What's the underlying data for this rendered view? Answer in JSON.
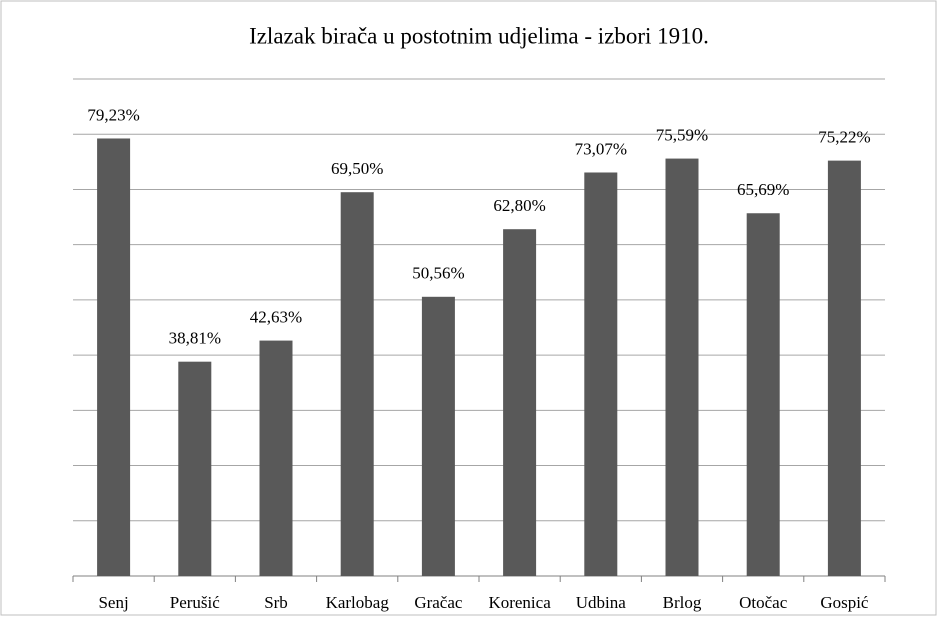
{
  "chart_data": {
    "type": "bar",
    "title": "Izlazak birača u postotnim udjelima - izbori 1910.",
    "categories": [
      "Senj",
      "Perušić",
      "Srb",
      "Karlobag",
      "Gračac",
      "Korenica",
      "Udbina",
      "Brlog",
      "Otočac",
      "Gospić"
    ],
    "values": [
      79.23,
      38.81,
      42.63,
      69.5,
      50.56,
      62.8,
      73.07,
      75.59,
      65.69,
      75.22
    ],
    "value_labels": [
      "79,23%",
      "38,81%",
      "42,63%",
      "69,50%",
      "50,56%",
      "62,80%",
      "73,07%",
      "75,59%",
      "65,69%",
      "75,22%"
    ],
    "color": "#595959",
    "ylim": [
      0,
      90
    ],
    "yticks": [
      0,
      10,
      20,
      30,
      40,
      50,
      60,
      70,
      80,
      90
    ],
    "grid": true
  }
}
